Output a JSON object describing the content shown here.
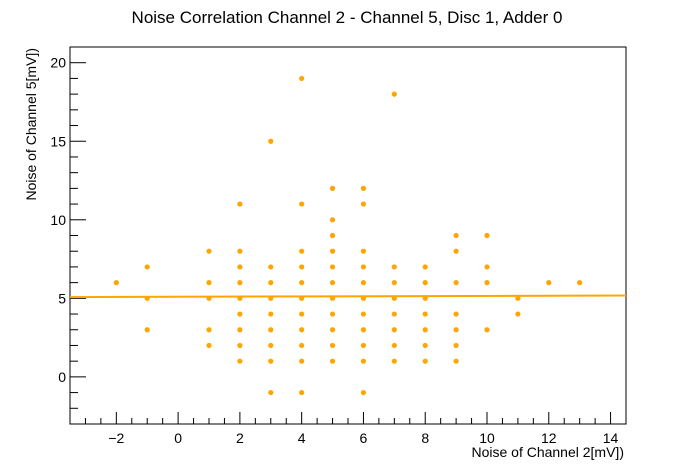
{
  "chart_data": {
    "type": "scatter",
    "title": "Noise Correlation Channel 2 - Channel 5, Disc 1, Adder 0",
    "xlabel": "Noise of Channel 2[mV])",
    "ylabel": "Noise of Channel 5[mV])",
    "xlim": [
      -3.5,
      14.5
    ],
    "ylim": [
      -3,
      21
    ],
    "xticks": [
      -2,
      0,
      2,
      4,
      6,
      8,
      10,
      12,
      14
    ],
    "yticks": [
      0,
      5,
      10,
      15,
      20
    ],
    "grid": false,
    "marker_color": "#ffa500",
    "fit_line_color": "#ffa500",
    "fit_line": {
      "x": [
        -3.5,
        14.5
      ],
      "y": [
        5.08,
        5.18
      ]
    },
    "points": [
      [
        -2,
        6
      ],
      [
        -1,
        7
      ],
      [
        -1,
        5
      ],
      [
        -1,
        3
      ],
      [
        1,
        8
      ],
      [
        1,
        6
      ],
      [
        1,
        5
      ],
      [
        1,
        3
      ],
      [
        1,
        2
      ],
      [
        2,
        11
      ],
      [
        2,
        8
      ],
      [
        2,
        7
      ],
      [
        2,
        6
      ],
      [
        2,
        5
      ],
      [
        2,
        4
      ],
      [
        2,
        3
      ],
      [
        2,
        2
      ],
      [
        2,
        1
      ],
      [
        3,
        15
      ],
      [
        3,
        7
      ],
      [
        3,
        6
      ],
      [
        3,
        5
      ],
      [
        3,
        4
      ],
      [
        3,
        3
      ],
      [
        3,
        2
      ],
      [
        3,
        1
      ],
      [
        3,
        -1
      ],
      [
        4,
        19
      ],
      [
        4,
        11
      ],
      [
        4,
        8
      ],
      [
        4,
        7
      ],
      [
        4,
        6
      ],
      [
        4,
        5
      ],
      [
        4,
        4
      ],
      [
        4,
        3
      ],
      [
        4,
        2
      ],
      [
        4,
        1
      ],
      [
        4,
        -1
      ],
      [
        5,
        12
      ],
      [
        5,
        10
      ],
      [
        5,
        9
      ],
      [
        5,
        8
      ],
      [
        5,
        7
      ],
      [
        5,
        6
      ],
      [
        5,
        5
      ],
      [
        5,
        4
      ],
      [
        5,
        3
      ],
      [
        5,
        2
      ],
      [
        5,
        1
      ],
      [
        6,
        12
      ],
      [
        6,
        11
      ],
      [
        6,
        8
      ],
      [
        6,
        7
      ],
      [
        6,
        6
      ],
      [
        6,
        5
      ],
      [
        6,
        4
      ],
      [
        6,
        3
      ],
      [
        6,
        2
      ],
      [
        6,
        1
      ],
      [
        6,
        -1
      ],
      [
        7,
        18
      ],
      [
        7,
        7
      ],
      [
        7,
        6
      ],
      [
        7,
        5
      ],
      [
        7,
        4
      ],
      [
        7,
        3
      ],
      [
        7,
        2
      ],
      [
        7,
        1
      ],
      [
        8,
        7
      ],
      [
        8,
        6
      ],
      [
        8,
        5
      ],
      [
        8,
        4
      ],
      [
        8,
        3
      ],
      [
        8,
        2
      ],
      [
        8,
        1
      ],
      [
        9,
        9
      ],
      [
        9,
        8
      ],
      [
        9,
        6
      ],
      [
        9,
        4
      ],
      [
        9,
        3
      ],
      [
        9,
        2
      ],
      [
        9,
        1
      ],
      [
        10,
        9
      ],
      [
        10,
        7
      ],
      [
        10,
        6
      ],
      [
        10,
        3
      ],
      [
        11,
        5
      ],
      [
        11,
        4
      ],
      [
        12,
        6
      ],
      [
        13,
        6
      ]
    ]
  }
}
